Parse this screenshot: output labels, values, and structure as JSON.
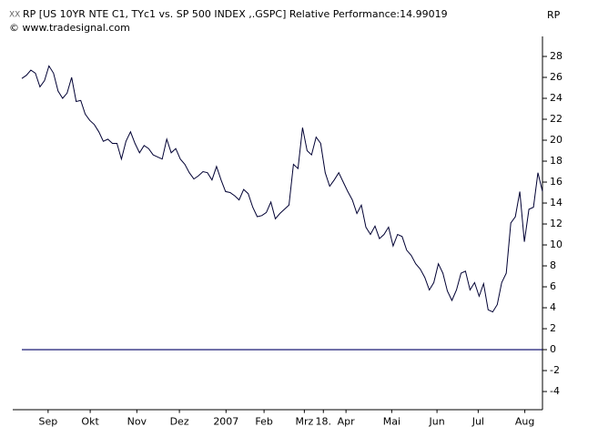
{
  "chart_data": {
    "type": "line",
    "title": "RP [US 10YR NTE C1, TYc1 vs. SP 500 INDEX ,.GSPC] Relative Performance:14.99019",
    "subtitle": "© www.tradesignal.com",
    "y_axis_label": "RP",
    "series": [
      {
        "name": "RP",
        "color": "#000033",
        "values": [
          25.9,
          26.2,
          26.7,
          26.4,
          25.1,
          25.7,
          27.1,
          26.4,
          24.7,
          24.0,
          24.5,
          26.0,
          23.7,
          23.8,
          22.5,
          21.9,
          21.5,
          20.8,
          19.9,
          20.1,
          19.7,
          19.7,
          18.2,
          19.9,
          20.8,
          19.7,
          18.8,
          19.5,
          19.2,
          18.6,
          18.4,
          18.2,
          20.1,
          18.8,
          19.2,
          18.2,
          17.7,
          16.9,
          16.3,
          16.6,
          17.0,
          16.9,
          16.2,
          17.5,
          16.2,
          15.1,
          15.0,
          14.7,
          14.3,
          15.3,
          14.9,
          13.6,
          12.7,
          12.8,
          13.1,
          14.1,
          12.5,
          13.0,
          13.4,
          13.8,
          17.7,
          17.3,
          21.2,
          19.0,
          18.6,
          20.3,
          19.7,
          16.9,
          15.6,
          16.2,
          16.9,
          16.0,
          15.1,
          14.3,
          13.0,
          13.8,
          11.7,
          11.0,
          11.8,
          10.6,
          11.0,
          11.7,
          9.9,
          11.0,
          10.8,
          9.5,
          9.0,
          8.2,
          7.7,
          6.9,
          5.7,
          6.4,
          8.2,
          7.3,
          5.6,
          4.7,
          5.7,
          7.3,
          7.5,
          5.7,
          6.4,
          5.1,
          6.3,
          3.8,
          3.6,
          4.3,
          6.4,
          7.3,
          12.1,
          12.7,
          15.1,
          10.3,
          13.4,
          13.6,
          16.9,
          15.1
        ]
      }
    ],
    "hline": 0,
    "hline_color": "#000066",
    "xlim": [
      0,
      115
    ],
    "xticks": [
      {
        "value": 5.8,
        "label": "Sep"
      },
      {
        "value": 15.1,
        "label": "Okt"
      },
      {
        "value": 25.4,
        "label": "Nov"
      },
      {
        "value": 34.8,
        "label": "Dez"
      },
      {
        "value": 45.1,
        "label": "2007"
      },
      {
        "value": 53.5,
        "label": "Feb"
      },
      {
        "value": 62.4,
        "label": "Mrz"
      },
      {
        "value": 66.6,
        "label": "18."
      },
      {
        "value": 71.6,
        "label": "Apr"
      },
      {
        "value": 81.7,
        "label": "Mai"
      },
      {
        "value": 91.7,
        "label": "Jun"
      },
      {
        "value": 100.8,
        "label": "Jul"
      },
      {
        "value": 111.1,
        "label": "Aug"
      }
    ],
    "ylim": [
      -5.7,
      30.8
    ],
    "yticks": [
      -4,
      -2,
      0,
      2,
      4,
      6,
      8,
      10,
      12,
      14,
      16,
      18,
      20,
      22,
      24,
      26,
      28
    ]
  }
}
